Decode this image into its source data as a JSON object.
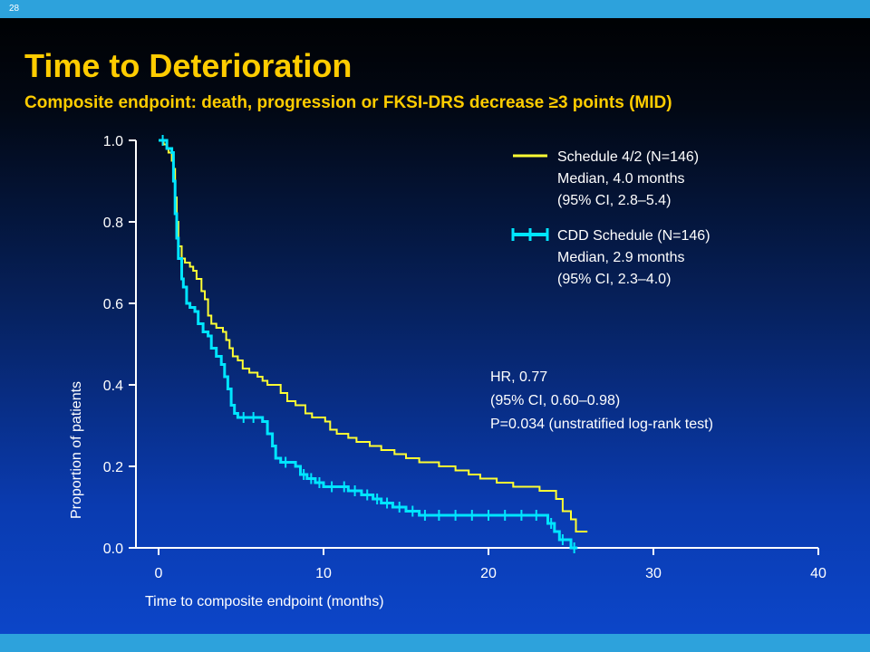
{
  "slide_number": "28",
  "title": "Time to Deterioration",
  "subtitle": "Composite endpoint: death, progression or FKSI-DRS decrease ≥3 points (MID)",
  "colors": {
    "series_1": "#ffff33",
    "series_2": "#00e5ff",
    "title": "#ffcc00",
    "bar": "#2da2dc"
  },
  "legend": {
    "entries": [
      {
        "lines": [
          "Schedule 4/2 (N=146)",
          "Median, 4.0 months",
          "(95% CI, 2.8–5.4)"
        ]
      },
      {
        "lines": [
          "CDD Schedule (N=146)",
          "Median, 2.9 months",
          "(95% CI, 2.3–4.0)"
        ]
      }
    ]
  },
  "stats": [
    "HR, 0.77",
    "(95% CI, 0.60–0.98)",
    "P=0.034 (unstratified log-rank test)"
  ],
  "chart_data": {
    "type": "line",
    "step": true,
    "xlabel": "Time to composite endpoint (months)",
    "ylabel": "Proportion of patients",
    "xlim": [
      0,
      40
    ],
    "ylim": [
      0,
      1
    ],
    "xticks": [
      "0",
      "10",
      "20",
      "30",
      "40"
    ],
    "yticks": [
      "0.0",
      "0.2",
      "0.4",
      "0.6",
      "0.8",
      "1.0"
    ],
    "grid": false,
    "legend_position": "top-right",
    "series": [
      {
        "name": "Schedule 4/2 (N=146)",
        "censor_marks": false,
        "points": [
          [
            0,
            1.0
          ],
          [
            0.3,
            0.99
          ],
          [
            0.5,
            0.98
          ],
          [
            0.6,
            0.97
          ],
          [
            0.8,
            0.95
          ],
          [
            0.9,
            0.93
          ],
          [
            1.0,
            0.86
          ],
          [
            1.1,
            0.8
          ],
          [
            1.2,
            0.74
          ],
          [
            1.4,
            0.71
          ],
          [
            1.6,
            0.7
          ],
          [
            1.9,
            0.69
          ],
          [
            2.1,
            0.68
          ],
          [
            2.3,
            0.66
          ],
          [
            2.6,
            0.63
          ],
          [
            2.8,
            0.61
          ],
          [
            3.0,
            0.57
          ],
          [
            3.2,
            0.55
          ],
          [
            3.5,
            0.54
          ],
          [
            3.9,
            0.53
          ],
          [
            4.1,
            0.51
          ],
          [
            4.3,
            0.49
          ],
          [
            4.5,
            0.47
          ],
          [
            4.8,
            0.46
          ],
          [
            5.1,
            0.44
          ],
          [
            5.5,
            0.43
          ],
          [
            6.0,
            0.42
          ],
          [
            6.3,
            0.41
          ],
          [
            6.6,
            0.4
          ],
          [
            7.2,
            0.4
          ],
          [
            7.4,
            0.38
          ],
          [
            7.8,
            0.36
          ],
          [
            8.3,
            0.35
          ],
          [
            8.9,
            0.33
          ],
          [
            9.3,
            0.32
          ],
          [
            9.8,
            0.32
          ],
          [
            10.1,
            0.31
          ],
          [
            10.4,
            0.29
          ],
          [
            10.8,
            0.28
          ],
          [
            11.5,
            0.27
          ],
          [
            12.0,
            0.26
          ],
          [
            12.8,
            0.25
          ],
          [
            13.5,
            0.24
          ],
          [
            14.3,
            0.23
          ],
          [
            15.0,
            0.22
          ],
          [
            15.8,
            0.21
          ],
          [
            17.0,
            0.2
          ],
          [
            18.0,
            0.19
          ],
          [
            18.8,
            0.18
          ],
          [
            19.5,
            0.17
          ],
          [
            20.5,
            0.16
          ],
          [
            21.5,
            0.15
          ],
          [
            23.1,
            0.14
          ],
          [
            23.8,
            0.14
          ],
          [
            24.1,
            0.12
          ],
          [
            24.5,
            0.09
          ],
          [
            25.0,
            0.07
          ],
          [
            25.3,
            0.04
          ],
          [
            26.0,
            0.04
          ]
        ]
      },
      {
        "name": "CDD Schedule (N=146)",
        "censor_marks": true,
        "points": [
          [
            0,
            1.0
          ],
          [
            0.5,
            0.98
          ],
          [
            0.8,
            0.97
          ],
          [
            0.9,
            0.9
          ],
          [
            1.0,
            0.82
          ],
          [
            1.1,
            0.76
          ],
          [
            1.2,
            0.71
          ],
          [
            1.4,
            0.66
          ],
          [
            1.5,
            0.64
          ],
          [
            1.7,
            0.6
          ],
          [
            1.9,
            0.59
          ],
          [
            2.2,
            0.58
          ],
          [
            2.4,
            0.55
          ],
          [
            2.7,
            0.53
          ],
          [
            3.0,
            0.52
          ],
          [
            3.2,
            0.49
          ],
          [
            3.5,
            0.47
          ],
          [
            3.8,
            0.45
          ],
          [
            4.0,
            0.42
          ],
          [
            4.2,
            0.39
          ],
          [
            4.4,
            0.35
          ],
          [
            4.6,
            0.33
          ],
          [
            4.8,
            0.32
          ],
          [
            5.5,
            0.32
          ],
          [
            6.0,
            0.32
          ],
          [
            6.3,
            0.31
          ],
          [
            6.6,
            0.28
          ],
          [
            6.9,
            0.25
          ],
          [
            7.1,
            0.22
          ],
          [
            7.4,
            0.21
          ],
          [
            8.0,
            0.21
          ],
          [
            8.3,
            0.2
          ],
          [
            8.6,
            0.18
          ],
          [
            9.0,
            0.17
          ],
          [
            9.5,
            0.16
          ],
          [
            10.0,
            0.15
          ],
          [
            11.0,
            0.15
          ],
          [
            11.5,
            0.14
          ],
          [
            12.3,
            0.13
          ],
          [
            13.0,
            0.12
          ],
          [
            13.5,
            0.11
          ],
          [
            14.2,
            0.1
          ],
          [
            15.0,
            0.09
          ],
          [
            15.8,
            0.08
          ],
          [
            16.5,
            0.08
          ],
          [
            17.5,
            0.08
          ],
          [
            18.5,
            0.08
          ],
          [
            19.5,
            0.08
          ],
          [
            20.5,
            0.08
          ],
          [
            21.5,
            0.08
          ],
          [
            22.5,
            0.08
          ],
          [
            23.3,
            0.08
          ],
          [
            23.6,
            0.06
          ],
          [
            24.0,
            0.04
          ],
          [
            24.3,
            0.02
          ],
          [
            24.7,
            0.02
          ],
          [
            25.0,
            0.0
          ],
          [
            25.4,
            0.0
          ]
        ]
      }
    ]
  }
}
